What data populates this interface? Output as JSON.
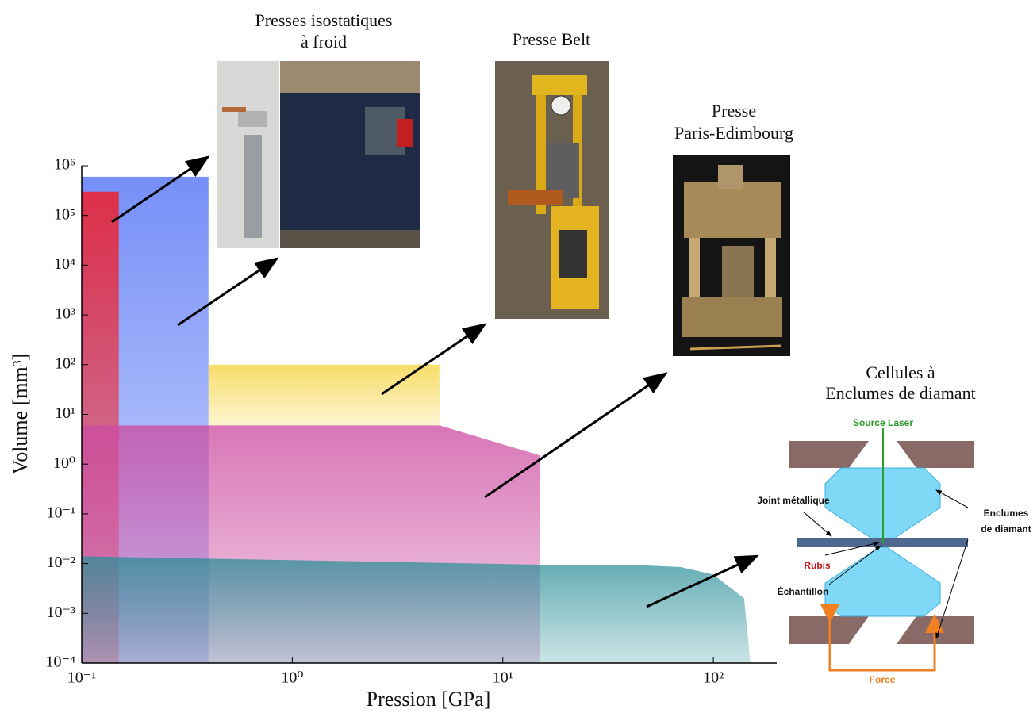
{
  "chart_data": {
    "type": "region",
    "xlabel": "Pression [GPa]",
    "ylabel": "Volume [mm³]",
    "xscale": "log",
    "yscale": "log",
    "xlim": [
      0.1,
      200
    ],
    "ylim": [
      0.0001,
      1000000
    ],
    "xticks": [
      {
        "value": 0.1,
        "label": "10⁻¹"
      },
      {
        "value": 1,
        "label": "10⁰"
      },
      {
        "value": 10,
        "label": "10¹"
      },
      {
        "value": 100,
        "label": "10²"
      }
    ],
    "yticks": [
      {
        "value": 0.0001,
        "label": "10⁻⁴"
      },
      {
        "value": 0.001,
        "label": "10⁻³"
      },
      {
        "value": 0.01,
        "label": "10⁻²"
      },
      {
        "value": 0.1,
        "label": "10⁻¹"
      },
      {
        "value": 1,
        "label": "10⁰"
      },
      {
        "value": 10,
        "label": "10¹"
      },
      {
        "value": 100,
        "label": "10²"
      },
      {
        "value": 1000,
        "label": "10³"
      },
      {
        "value": 10000,
        "label": "10⁴"
      },
      {
        "value": 100000,
        "label": "10⁵"
      },
      {
        "value": 1000000,
        "label": "10⁶"
      }
    ],
    "series": [
      {
        "color": "#4a6cf5",
        "x": [
          0.1,
          0.1,
          0.4,
          0.4
        ],
        "values": [
          0.0001,
          600000,
          600000,
          0.0001
        ]
      },
      {
        "color": "#ff1010",
        "x": [
          0.1,
          0.1,
          0.15,
          0.15
        ],
        "values": [
          0.0001,
          300000,
          300000,
          0.0001
        ]
      },
      {
        "color": "#f6d23a",
        "x": [
          0.4,
          0.4,
          5,
          5
        ],
        "values": [
          6,
          100,
          100,
          6
        ]
      },
      {
        "color": "#cc4aa0",
        "x": [
          0.1,
          0.1,
          5,
          15,
          15
        ],
        "values": [
          0.0001,
          6,
          6,
          1.5,
          0.0001
        ]
      },
      {
        "color": "#2a8f98",
        "x": [
          0.1,
          0.1,
          15,
          40,
          70,
          100,
          140,
          150
        ],
        "values": [
          0.0001,
          0.014,
          0.0095,
          0.0095,
          0.0085,
          0.006,
          0.002,
          0.0001
        ]
      }
    ]
  },
  "panels": [
    {
      "title": [
        "Presses isostatiques",
        "à froid"
      ]
    },
    {
      "title": [
        "Presse Belt"
      ]
    },
    {
      "title": [
        "Presse",
        "Paris-Edimbourg"
      ]
    }
  ],
  "diamond_cell": {
    "title": [
      "Cellules à",
      "Enclumes de diamant"
    ],
    "source": "Source Laser",
    "gasket": "Joint métallique",
    "anvils": [
      "Enclumes",
      "de diamant"
    ],
    "ruby": "Rubis",
    "sample": "Échantillon",
    "force": "Force"
  }
}
